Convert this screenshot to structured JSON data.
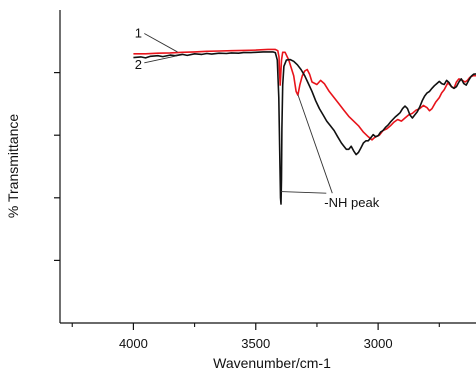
{
  "chart_data": {
    "type": "line",
    "xlabel": "Wavenumber/cm-1",
    "ylabel": "% Transmittance",
    "xlim": [
      4300,
      2600
    ],
    "ylim": [
      0,
      100
    ],
    "x_ticks": [
      4000,
      3500,
      3000
    ],
    "x_tick_labels": [
      "4000",
      "3500",
      "3000"
    ],
    "y_ticks": [
      20,
      40,
      60,
      80
    ],
    "series": [
      {
        "name": "1",
        "color": "#e8141b",
        "points": [
          [
            4000,
            86
          ],
          [
            3950,
            86
          ],
          [
            3900,
            86.2
          ],
          [
            3850,
            86.3
          ],
          [
            3800,
            86.5
          ],
          [
            3750,
            86.6
          ],
          [
            3700,
            86.8
          ],
          [
            3650,
            86.9
          ],
          [
            3600,
            87
          ],
          [
            3550,
            87.1
          ],
          [
            3500,
            87.2
          ],
          [
            3450,
            87.4
          ],
          [
            3420,
            87.4
          ],
          [
            3410,
            87
          ],
          [
            3405,
            85
          ],
          [
            3402,
            79
          ],
          [
            3400,
            76
          ],
          [
            3398,
            79
          ],
          [
            3395,
            84
          ],
          [
            3390,
            86.5
          ],
          [
            3380,
            86.5
          ],
          [
            3365,
            84
          ],
          [
            3345,
            79
          ],
          [
            3335,
            74
          ],
          [
            3328,
            72.8
          ],
          [
            3320,
            76
          ],
          [
            3310,
            79
          ],
          [
            3300,
            80.5
          ],
          [
            3290,
            81
          ],
          [
            3280,
            79.5
          ],
          [
            3270,
            77
          ],
          [
            3250,
            76.2
          ],
          [
            3235,
            77.5
          ],
          [
            3220,
            76.5
          ],
          [
            3200,
            74
          ],
          [
            3180,
            72
          ],
          [
            3160,
            70
          ],
          [
            3140,
            68
          ],
          [
            3120,
            66
          ],
          [
            3100,
            64.5
          ],
          [
            3080,
            63
          ],
          [
            3060,
            61
          ],
          [
            3040,
            59.5
          ],
          [
            3025,
            58.5
          ],
          [
            3015,
            59.2
          ],
          [
            3005,
            59.7
          ],
          [
            2995,
            60
          ],
          [
            2980,
            61.5
          ],
          [
            2965,
            62
          ],
          [
            2950,
            63
          ],
          [
            2935,
            64.2
          ],
          [
            2920,
            65
          ],
          [
            2905,
            64.5
          ],
          [
            2890,
            65.5
          ],
          [
            2875,
            66.5
          ],
          [
            2860,
            67
          ],
          [
            2845,
            68
          ],
          [
            2830,
            68.5
          ],
          [
            2815,
            69.5
          ],
          [
            2800,
            68.8
          ],
          [
            2790,
            67.8
          ],
          [
            2780,
            68.5
          ],
          [
            2765,
            70.5
          ],
          [
            2750,
            72
          ],
          [
            2740,
            73.5
          ],
          [
            2730,
            74.5
          ],
          [
            2715,
            76.8
          ],
          [
            2700,
            75.5
          ],
          [
            2690,
            75
          ],
          [
            2680,
            77
          ],
          [
            2670,
            78
          ],
          [
            2655,
            77.5
          ],
          [
            2645,
            77
          ],
          [
            2635,
            77.5
          ],
          [
            2625,
            78.5
          ],
          [
            2612,
            79
          ],
          [
            2600,
            79
          ]
        ]
      },
      {
        "name": "2",
        "color": "#111111",
        "points": [
          [
            4000,
            84.8
          ],
          [
            3970,
            85
          ],
          [
            3950,
            84.7
          ],
          [
            3930,
            85.2
          ],
          [
            3900,
            85.4
          ],
          [
            3880,
            85.1
          ],
          [
            3850,
            85.6
          ],
          [
            3830,
            85.4
          ],
          [
            3800,
            85.8
          ],
          [
            3780,
            85.5
          ],
          [
            3750,
            86
          ],
          [
            3720,
            85.8
          ],
          [
            3700,
            86.1
          ],
          [
            3680,
            85.9
          ],
          [
            3650,
            86.2
          ],
          [
            3620,
            86.1
          ],
          [
            3600,
            86.3
          ],
          [
            3570,
            86.2
          ],
          [
            3550,
            86.4
          ],
          [
            3520,
            86.4
          ],
          [
            3500,
            86.5
          ],
          [
            3470,
            86.6
          ],
          [
            3450,
            86.6
          ],
          [
            3430,
            86.6
          ],
          [
            3420,
            86.4
          ],
          [
            3412,
            84
          ],
          [
            3406,
            72
          ],
          [
            3402,
            55
          ],
          [
            3399,
            40
          ],
          [
            3397,
            38
          ],
          [
            3395,
            46
          ],
          [
            3393,
            62
          ],
          [
            3390,
            76
          ],
          [
            3385,
            82
          ],
          [
            3375,
            84
          ],
          [
            3360,
            84.2
          ],
          [
            3345,
            83.6
          ],
          [
            3330,
            82.5
          ],
          [
            3315,
            81
          ],
          [
            3300,
            79
          ],
          [
            3285,
            76.5
          ],
          [
            3270,
            74
          ],
          [
            3255,
            71
          ],
          [
            3240,
            68.5
          ],
          [
            3225,
            66.5
          ],
          [
            3210,
            64.5
          ],
          [
            3195,
            63
          ],
          [
            3180,
            61.5
          ],
          [
            3165,
            59.5
          ],
          [
            3150,
            57.5
          ],
          [
            3140,
            56.5
          ],
          [
            3130,
            55.5
          ],
          [
            3120,
            55.5
          ],
          [
            3110,
            56.5
          ],
          [
            3100,
            55
          ],
          [
            3090,
            53.8
          ],
          [
            3080,
            54.5
          ],
          [
            3070,
            56
          ],
          [
            3060,
            57.5
          ],
          [
            3050,
            58.2
          ],
          [
            3040,
            58.2
          ],
          [
            3030,
            59.2
          ],
          [
            3020,
            60.2
          ],
          [
            3010,
            59.5
          ],
          [
            3000,
            59.8
          ],
          [
            2990,
            61
          ],
          [
            2980,
            61.5
          ],
          [
            2970,
            62.5
          ],
          [
            2960,
            63.2
          ],
          [
            2950,
            64.2
          ],
          [
            2940,
            65
          ],
          [
            2930,
            65.8
          ],
          [
            2920,
            66.5
          ],
          [
            2910,
            67.2
          ],
          [
            2900,
            68.5
          ],
          [
            2890,
            69.3
          ],
          [
            2880,
            68.5
          ],
          [
            2870,
            66.5
          ],
          [
            2860,
            65.5
          ],
          [
            2850,
            66.5
          ],
          [
            2840,
            67.5
          ],
          [
            2830,
            69
          ],
          [
            2820,
            71
          ],
          [
            2810,
            72.5
          ],
          [
            2800,
            73.5
          ],
          [
            2790,
            74
          ],
          [
            2780,
            75
          ],
          [
            2770,
            75.8
          ],
          [
            2760,
            76.5
          ],
          [
            2750,
            77.2
          ],
          [
            2740,
            76.5
          ],
          [
            2730,
            76.2
          ],
          [
            2720,
            77.5
          ],
          [
            2710,
            76.8
          ],
          [
            2700,
            75.5
          ],
          [
            2690,
            75
          ],
          [
            2680,
            75.5
          ],
          [
            2670,
            77
          ],
          [
            2660,
            78
          ],
          [
            2650,
            76.5
          ],
          [
            2640,
            76
          ],
          [
            2630,
            77.5
          ],
          [
            2620,
            78.8
          ],
          [
            2610,
            79.5
          ],
          [
            2600,
            79.6
          ]
        ]
      }
    ],
    "annotations": [
      {
        "id": "label-1",
        "text": "1",
        "x": 3980,
        "y": 91.2,
        "leader_to": [
          3820,
          86.6
        ]
      },
      {
        "id": "label-2",
        "text": "2",
        "x": 3980,
        "y": 81.2,
        "leader_to": [
          3820,
          85.4
        ]
      },
      {
        "id": "nh-peak",
        "text": "-NH peak",
        "x": 3220,
        "y": 37,
        "leader_to": [
          [
            3398,
            42
          ],
          [
            3328,
            73
          ]
        ]
      }
    ]
  }
}
